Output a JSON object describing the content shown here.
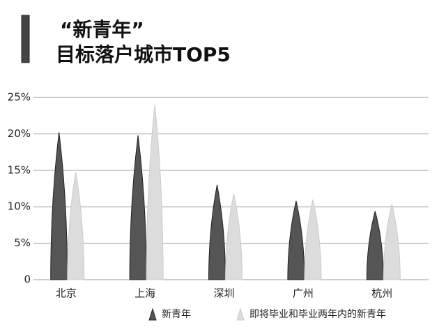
{
  "chart_data": {
    "type": "bar",
    "title": "“新青年”",
    "subtitle": "目标落户城市TOP5",
    "categories": [
      "北京",
      "上海",
      "深圳",
      "广州",
      "杭州"
    ],
    "series": [
      {
        "name": "新青年",
        "color": "#555555",
        "values": [
          20.2,
          19.8,
          13,
          10.8,
          9.4
        ]
      },
      {
        "name": "即将毕业和毕业两年内的新青年",
        "color": "#dcdcdc",
        "values": [
          14.8,
          24,
          11.8,
          11,
          10.4
        ]
      }
    ],
    "ylim": [
      0,
      25
    ],
    "yticks": [
      0,
      {
        "value": 5,
        "label": "5%"
      },
      {
        "value": 10,
        "label": "10%"
      },
      {
        "value": 15,
        "label": "15%"
      },
      {
        "value": 20,
        "label": "20%"
      },
      {
        "value": 25,
        "label": "25%"
      }
    ],
    "grid": true
  }
}
